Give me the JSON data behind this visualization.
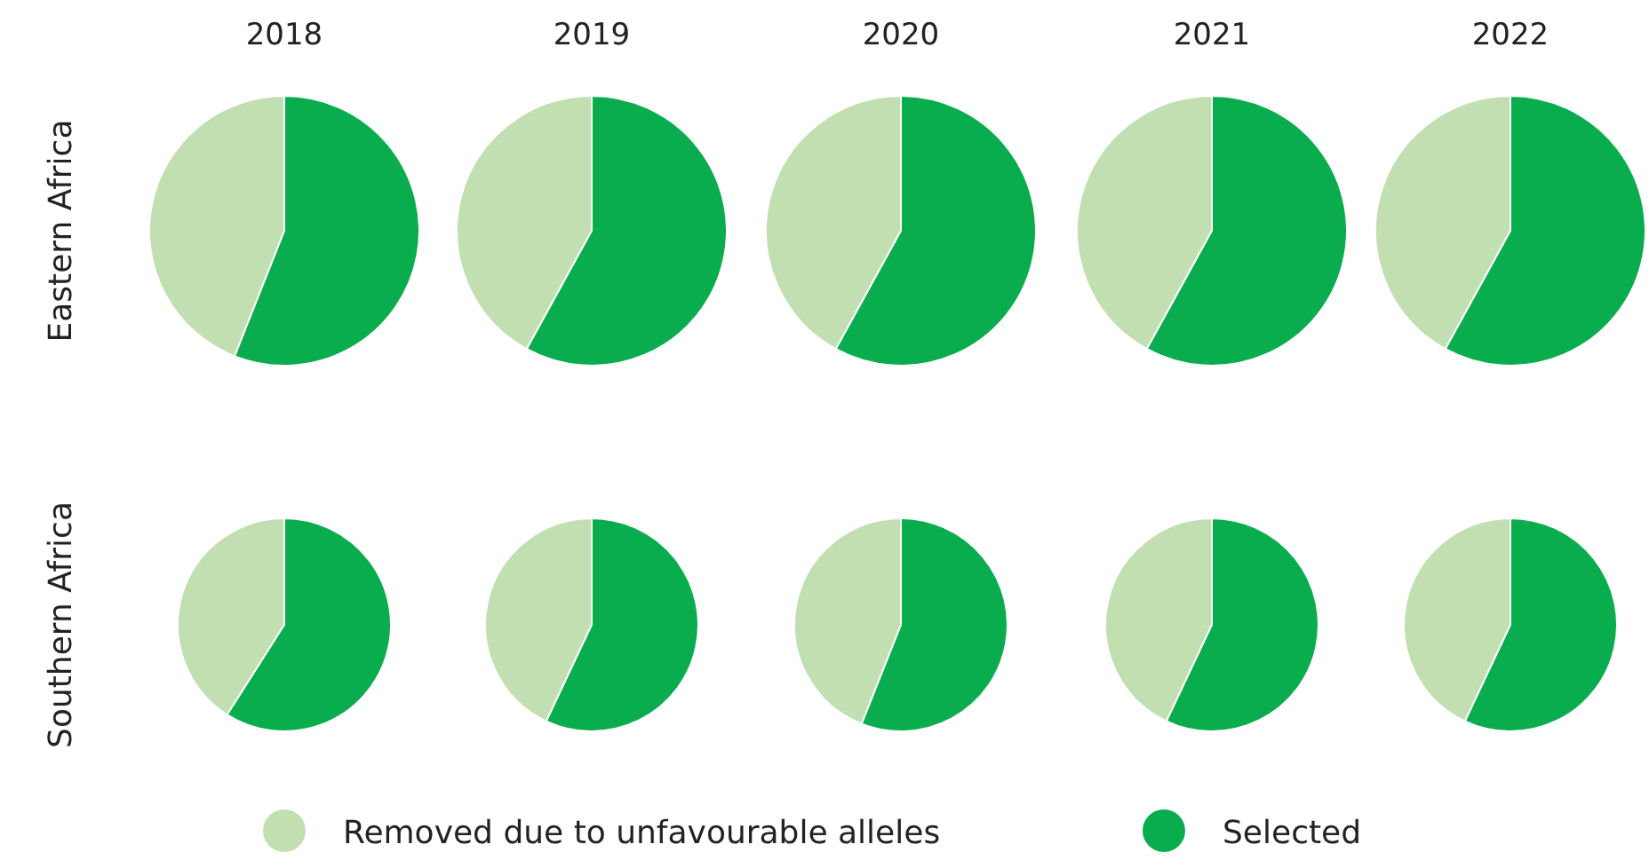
{
  "chart_data": [
    {
      "type": "pie",
      "title": "2018",
      "ylabel": "Eastern Africa",
      "categories": [
        null,
        null
      ],
      "values": [
        44,
        56
      ],
      "colors": [
        "#c2dfb2",
        "#0aad4e"
      ]
    },
    {
      "type": "pie",
      "title": "2019",
      "categories": [
        null,
        null
      ],
      "values": [
        42,
        58
      ],
      "colors": [
        "#c2dfb2",
        "#0aad4e"
      ]
    },
    {
      "type": "pie",
      "title": "2020",
      "categories": [
        null,
        null
      ],
      "values": [
        42,
        58
      ],
      "colors": [
        "#c2dfb2",
        "#0aad4e"
      ]
    },
    {
      "type": "pie",
      "title": "2021",
      "categories": [
        null,
        null
      ],
      "values": [
        42,
        58
      ],
      "colors": [
        "#c2dfb2",
        "#0aad4e"
      ]
    },
    {
      "type": "pie",
      "title": "2022",
      "categories": [
        null,
        null
      ],
      "values": [
        42,
        58
      ],
      "colors": [
        "#c2dfb2",
        "#0aad4e"
      ]
    },
    {
      "type": "pie",
      "ylabel": "Southern Africa",
      "categories": [
        "Removed due to unfavourable alleles",
        "Selected"
      ],
      "values": [
        41,
        59
      ],
      "colors": [
        "#c2dfb2",
        "#0aad4e"
      ],
      "legend": "bottom"
    },
    {
      "type": "pie",
      "categories": [
        null,
        null
      ],
      "values": [
        43,
        57
      ],
      "colors": [
        "#c2dfb2",
        "#0aad4e"
      ]
    },
    {
      "type": "pie",
      "categories": [
        null,
        null
      ],
      "values": [
        44,
        56
      ],
      "colors": [
        "#c2dfb2",
        "#0aad4e"
      ]
    },
    {
      "type": "pie",
      "categories": [
        null,
        null
      ],
      "values": [
        43,
        57
      ],
      "colors": [
        "#c2dfb2",
        "#0aad4e"
      ]
    },
    {
      "type": "pie",
      "categories": [
        null,
        null
      ],
      "values": [
        43,
        57
      ],
      "colors": [
        "#c2dfb2",
        "#0aad4e"
      ]
    }
  ]
}
